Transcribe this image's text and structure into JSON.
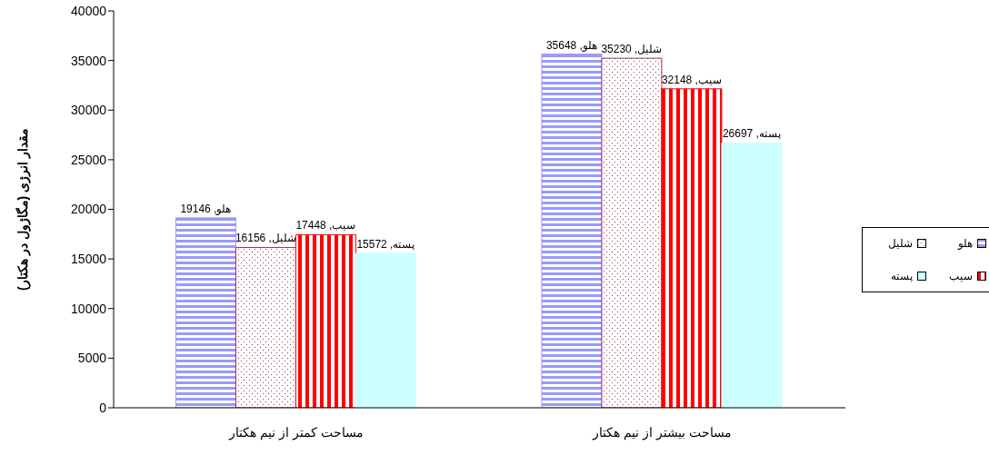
{
  "chart_data": {
    "type": "bar",
    "ylabel": "مقدار انرژی (مگاژول در هکتار)",
    "categories": [
      "مساحت کمتر از نیم هکتار",
      "مساحت بیشتر از نیم هکتار"
    ],
    "series": [
      {
        "name": "هلو",
        "color": "#9999ff",
        "values": [
          19146,
          35648
        ],
        "value_labels": [
          "هلو, 19146",
          "هلو, 35648"
        ]
      },
      {
        "name": "شلیل",
        "color": "#993366",
        "values": [
          16156,
          35230
        ],
        "value_labels": [
          "شلیل, 16156",
          "شلیل, 35230"
        ]
      },
      {
        "name": "سیب",
        "color": "#ff0000",
        "values": [
          17448,
          32148
        ],
        "value_labels": [
          "سیب, 17448",
          "سیب, 32148"
        ]
      },
      {
        "name": "پسته",
        "color": "#ccffff",
        "values": [
          15572,
          26697
        ],
        "value_labels": [
          "پسته, 15572",
          "پسته, 26697"
        ]
      }
    ],
    "ylim": [
      0,
      40000
    ],
    "yticks": [
      0,
      5000,
      10000,
      15000,
      20000,
      25000,
      30000,
      35000,
      40000
    ],
    "grid": false,
    "legend": "right"
  }
}
